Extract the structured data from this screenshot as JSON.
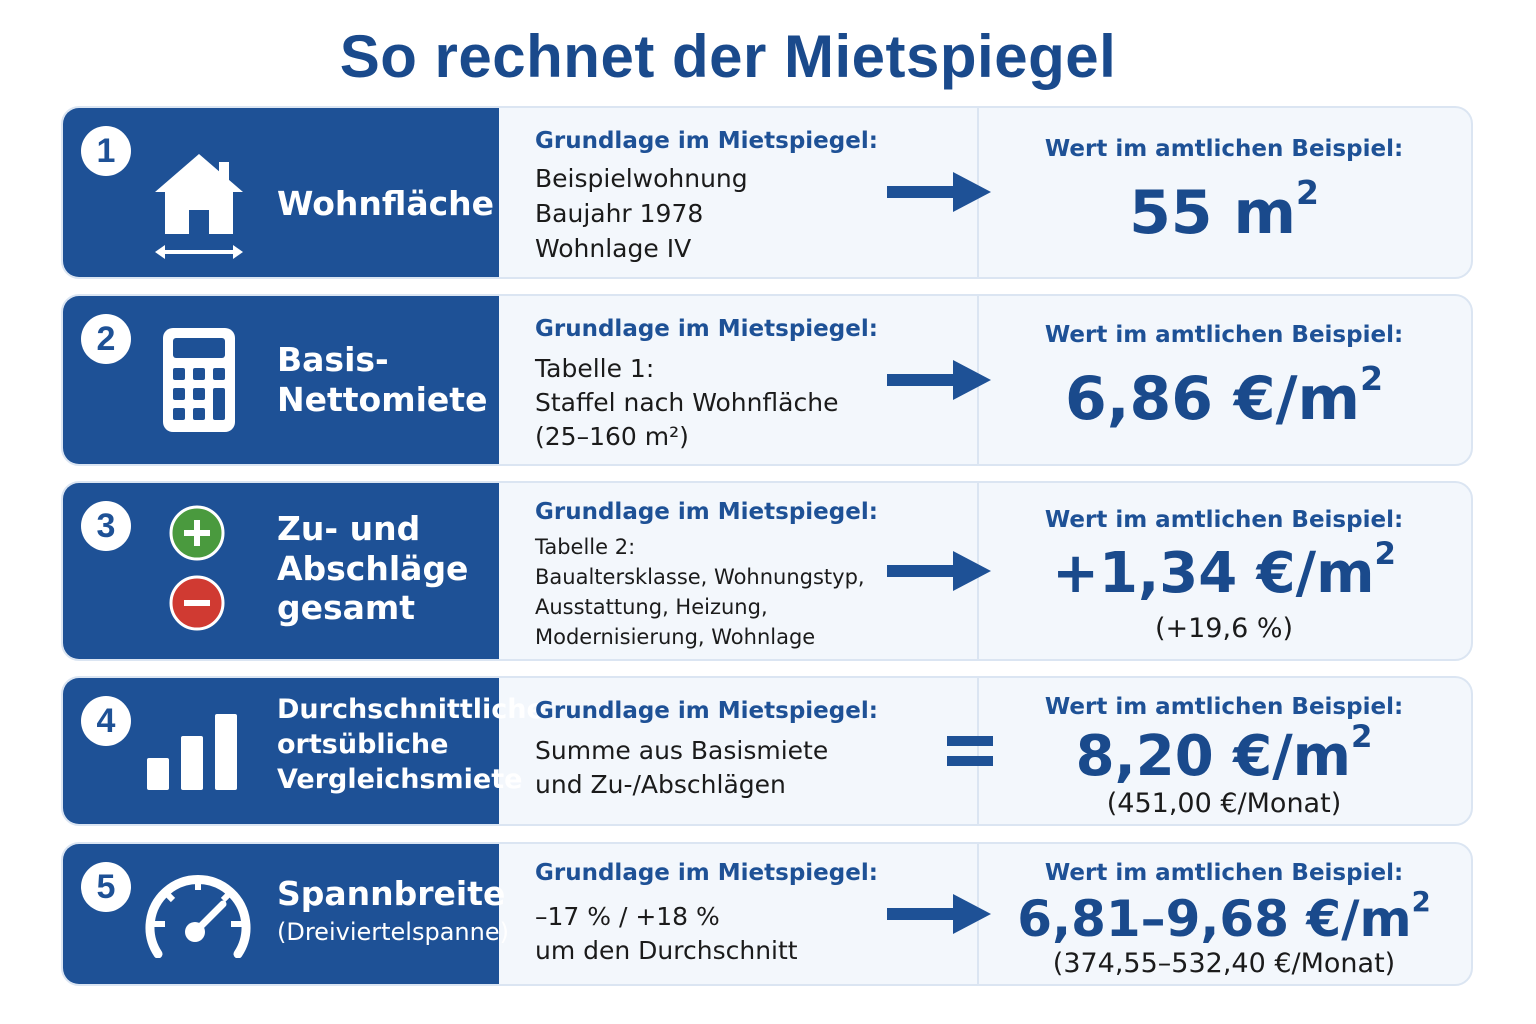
{
  "title": "So rechnet der Mietspiegel",
  "basis_heading": "Grundlage im Mietspiegel:",
  "value_heading": "Wert im amtlichen Beispiel:",
  "colors": {
    "primary": "#1e5196",
    "title": "#1a4a8c",
    "panel": "#f3f7fc",
    "plus": "#4a9a3e",
    "minus": "#d03a32"
  },
  "steps": [
    {
      "number": "1",
      "icon": "house-area-icon",
      "label": [
        "Wohnfläche"
      ],
      "basis": [
        "Beispielwohnung",
        "Baujahr 1978",
        "Wohnlage IV"
      ],
      "operator": "arrow",
      "value_main": "55 m",
      "value_sup": "2",
      "value_sub": ""
    },
    {
      "number": "2",
      "icon": "calculator-icon",
      "label": [
        "Basis-",
        "Nettomiete"
      ],
      "basis": [
        "Tabelle 1:",
        "Staffel nach Wohnfläche",
        "(25–160 m²)"
      ],
      "operator": "arrow",
      "value_main": "6,86 €/m",
      "value_sup": "2",
      "value_sub": ""
    },
    {
      "number": "3",
      "icon": "plus-minus-icon",
      "label": [
        "Zu- und",
        "Abschläge",
        "gesamt"
      ],
      "basis": [
        "Tabelle 2:",
        "Baualtersklasse, Wohnungstyp,",
        "Ausstattung, Heizung,",
        "Modernisierung, Wohnlage"
      ],
      "operator": "arrow",
      "value_main": "+1,34 €/m",
      "value_sup": "2",
      "value_sub": "(+19,6 %)"
    },
    {
      "number": "4",
      "icon": "bar-chart-icon",
      "label": [
        "Durchschnittliche",
        "ortsübliche",
        "Vergleichsmiete"
      ],
      "basis": [
        "Summe aus Basismiete",
        "und Zu-/Abschlägen"
      ],
      "operator": "equals",
      "value_main": "8,20 €/m",
      "value_sup": "2",
      "value_sub": "(451,00 €/Monat)"
    },
    {
      "number": "5",
      "icon": "speedometer-icon",
      "label": [
        "Spannbreite",
        "(Dreiviertelspanne)"
      ],
      "basis": [
        "–17 % / +18 %",
        "um den Durchschnitt"
      ],
      "operator": "arrow",
      "value_main": "6,81–9,68 €/m",
      "value_sup": "2",
      "value_sub": "(374,55–532,40 €/Monat)"
    }
  ]
}
